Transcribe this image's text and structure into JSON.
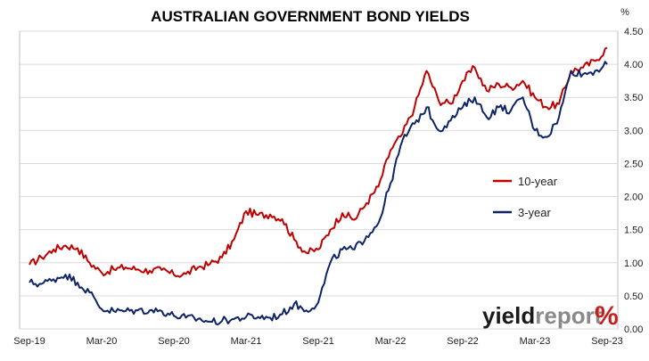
{
  "chart_data": {
    "type": "line",
    "title": "AUSTRALIAN GOVERNMENT BOND YIELDS",
    "ylabel": "%",
    "ylim": [
      0,
      4.5
    ],
    "y_ticks": [
      "0.00",
      "0.50",
      "1.00",
      "1.50",
      "2.00",
      "2.50",
      "3.00",
      "3.50",
      "4.00",
      "4.50"
    ],
    "x_ticks": [
      "Sep-19",
      "Mar-20",
      "Sep-20",
      "Mar-21",
      "Sep-21",
      "Mar-22",
      "Sep-22",
      "Mar-23",
      "Sep-23"
    ],
    "grid": "horizontal",
    "legend_position": "right",
    "colors": {
      "ten_year": "#c00000",
      "three_year": "#0d2566"
    },
    "x": [
      "Sep-19",
      "Oct-19",
      "Nov-19",
      "Dec-19",
      "Jan-20",
      "Feb-20",
      "Mar-20",
      "Apr-20",
      "May-20",
      "Jun-20",
      "Jul-20",
      "Aug-20",
      "Sep-20",
      "Oct-20",
      "Nov-20",
      "Dec-20",
      "Jan-21",
      "Feb-21",
      "Mar-21",
      "Apr-21",
      "May-21",
      "Jun-21",
      "Jul-21",
      "Aug-21",
      "Sep-21",
      "Oct-21",
      "Nov-21",
      "Dec-21",
      "Jan-22",
      "Feb-22",
      "Mar-22",
      "Apr-22",
      "May-22",
      "Jun-22",
      "Jul-22",
      "Aug-22",
      "Sep-22",
      "Oct-22",
      "Nov-22",
      "Dec-22",
      "Jan-23",
      "Feb-23",
      "Mar-23",
      "Apr-23",
      "May-23",
      "Jun-23",
      "Jul-23",
      "Aug-23",
      "Sep-23"
    ],
    "series": [
      {
        "name": "10-year",
        "values": [
          0.97,
          1.08,
          1.2,
          1.26,
          1.22,
          1.0,
          0.85,
          0.9,
          0.93,
          0.9,
          0.88,
          0.89,
          0.82,
          0.83,
          0.93,
          0.98,
          1.08,
          1.35,
          1.78,
          1.72,
          1.73,
          1.66,
          1.35,
          1.15,
          1.2,
          1.5,
          1.75,
          1.65,
          1.9,
          2.15,
          2.7,
          2.95,
          3.35,
          3.9,
          3.45,
          3.4,
          3.75,
          3.95,
          3.6,
          3.7,
          3.65,
          3.75,
          3.5,
          3.35,
          3.4,
          3.9,
          3.95,
          4.05,
          4.25
        ]
      },
      {
        "name": "3-year",
        "values": [
          0.7,
          0.68,
          0.75,
          0.82,
          0.7,
          0.55,
          0.3,
          0.27,
          0.27,
          0.28,
          0.28,
          0.27,
          0.2,
          0.17,
          0.15,
          0.11,
          0.12,
          0.15,
          0.18,
          0.18,
          0.17,
          0.22,
          0.38,
          0.28,
          0.4,
          1.0,
          1.2,
          1.2,
          1.4,
          1.6,
          2.2,
          2.85,
          3.1,
          3.35,
          3.0,
          3.15,
          3.35,
          3.5,
          3.2,
          3.35,
          3.3,
          3.5,
          3.0,
          2.9,
          3.2,
          3.9,
          3.85,
          3.9,
          4.0
        ]
      }
    ],
    "watermark": {
      "part1": "yield",
      "part2": "report",
      "part3": "%"
    }
  }
}
